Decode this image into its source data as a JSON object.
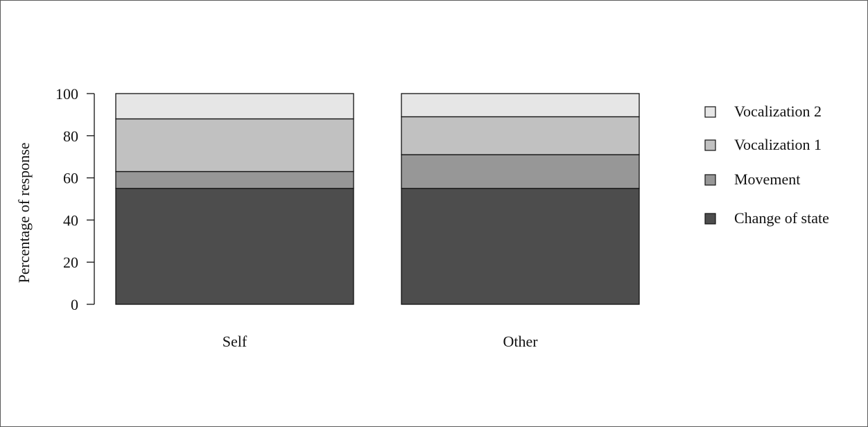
{
  "chart_data": {
    "type": "bar",
    "stacked": true,
    "title": "",
    "xlabel": "",
    "ylabel": "Percentage of response",
    "ylim": [
      0,
      100
    ],
    "yticks": [
      "0",
      "20",
      "40",
      "60",
      "80",
      "100"
    ],
    "categories": [
      "Self",
      "Other"
    ],
    "series": [
      {
        "name": "Change of state",
        "values": [
          55,
          55
        ],
        "color": "#4d4d4d"
      },
      {
        "name": "Movement",
        "values": [
          8,
          16
        ],
        "color": "#979797"
      },
      {
        "name": "Vocalization 1",
        "values": [
          25,
          18
        ],
        "color": "#c1c1c1"
      },
      {
        "name": "Vocalization 2",
        "values": [
          12,
          11
        ],
        "color": "#e6e6e6"
      }
    ],
    "legend": {
      "position": "right",
      "order": [
        "Vocalization 2",
        "Vocalization 1",
        "Movement",
        "Change of state"
      ]
    },
    "grid": false
  }
}
